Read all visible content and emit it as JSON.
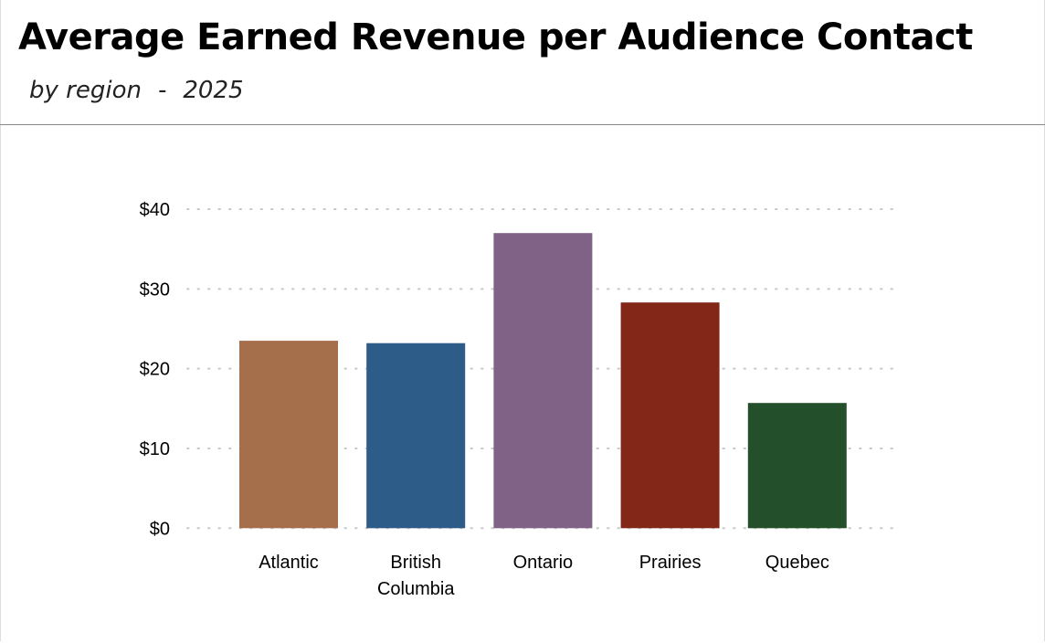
{
  "header": {
    "title": "Average Earned Revenue per Audience Contact",
    "subtitle_by": "by region",
    "subtitle_sep": "-",
    "subtitle_year": "2025"
  },
  "chart_data": {
    "type": "bar",
    "title": "Average Earned Revenue per Audience Contact",
    "subtitle": "by region - 2025",
    "categories": [
      "Atlantic",
      "British Columbia",
      "Ontario",
      "Prairies",
      "Quebec"
    ],
    "category_lines": [
      [
        "Atlantic"
      ],
      [
        "British",
        "Columbia"
      ],
      [
        "Ontario"
      ],
      [
        "Prairies"
      ],
      [
        "Quebec"
      ]
    ],
    "values": [
      23.5,
      23.2,
      37.0,
      28.3,
      15.7
    ],
    "colors": [
      "#a66f4c",
      "#2e5c88",
      "#7f6285",
      "#832819",
      "#234f2b"
    ],
    "ylim": [
      0,
      40
    ],
    "yticks": [
      0,
      10,
      20,
      30,
      40
    ],
    "ytick_labels": [
      "$0",
      "$10",
      "$20",
      "$30",
      "$40"
    ],
    "grid": true,
    "grid_style": "dotted",
    "gridline_color": "#c8c8c8"
  }
}
